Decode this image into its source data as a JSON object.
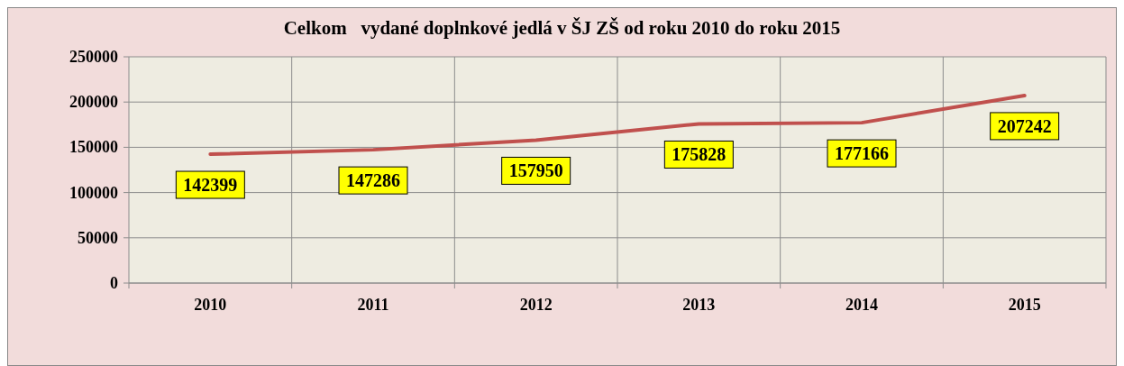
{
  "chart_data": {
    "type": "line",
    "title": "Celkom   vydané doplnkové jedlá v ŠJ ZŠ od roku 2010 do roku 2015",
    "categories": [
      "2010",
      "2011",
      "2012",
      "2013",
      "2014",
      "2015"
    ],
    "series": [
      {
        "color": "#c0504d",
        "values": [
          142399,
          147286,
          157950,
          175828,
          177166,
          207242
        ]
      }
    ],
    "ylim": [
      0,
      250000
    ],
    "yticks": [
      0,
      50000,
      100000,
      150000,
      200000,
      250000
    ],
    "grid": true,
    "data_labels": true,
    "marker": "none",
    "line_style": "solid"
  }
}
